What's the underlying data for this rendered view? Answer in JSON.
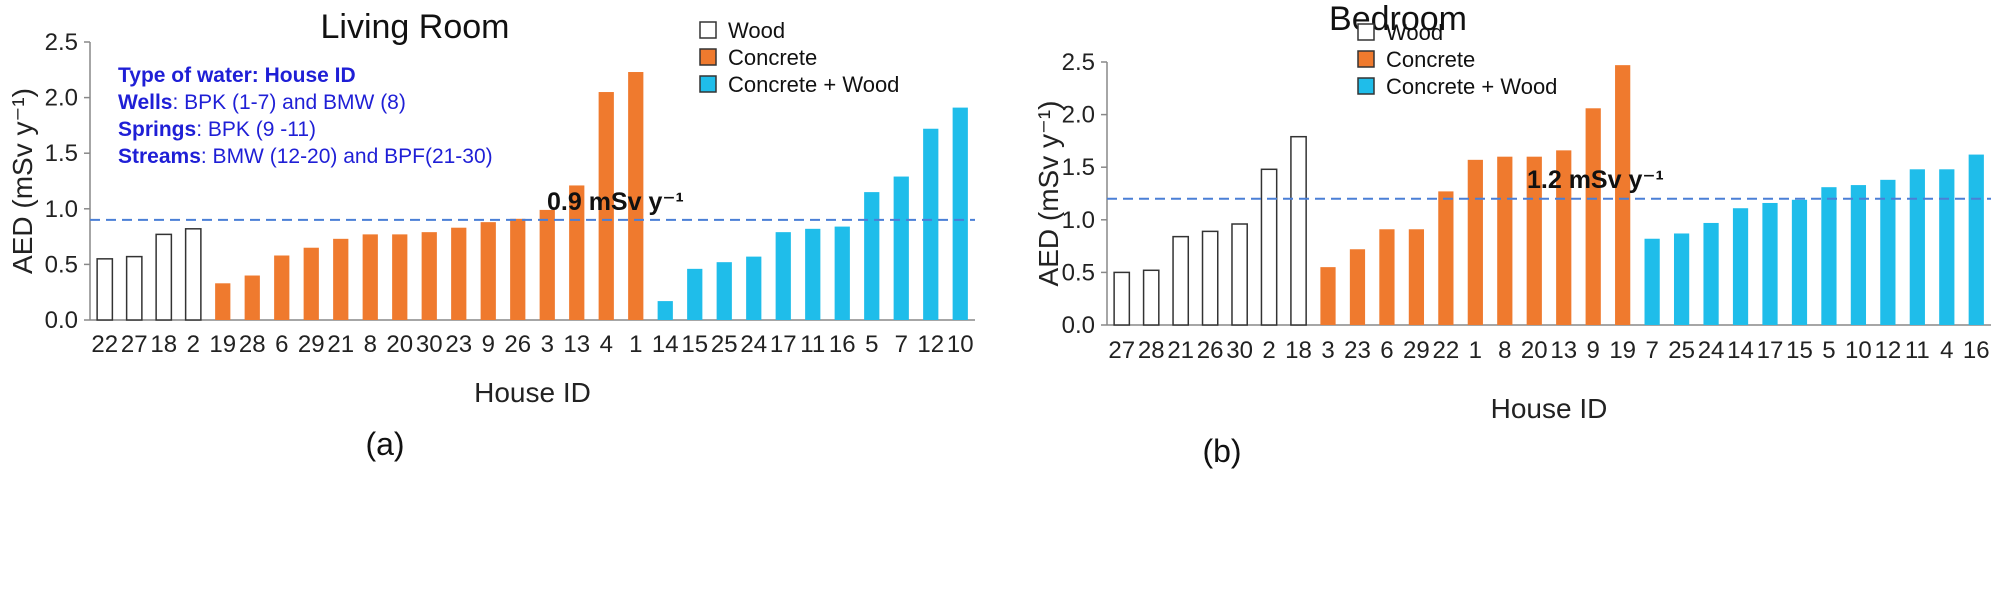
{
  "colors": {
    "wood": "#ffffff",
    "concrete": "#ef7a2e",
    "concrete_wood": "#1fbdea",
    "threshold": "#4a7fd6",
    "note": "#1f1fd6"
  },
  "chart_data": [
    {
      "type": "bar",
      "title": "Living Room",
      "xlabel": "House ID",
      "ylabel": "AED (mSv y⁻¹)",
      "ylim": [
        0,
        2.5
      ],
      "yticks": [
        "0.0",
        "0.5",
        "1.0",
        "1.5",
        "2.0",
        "2.5"
      ],
      "panel_label": "(a)",
      "threshold": {
        "value": 0.9,
        "label": "0.9 mSv y⁻¹"
      },
      "legend": [
        {
          "name": "Wood",
          "key": "wood"
        },
        {
          "name": "Concrete",
          "key": "concrete"
        },
        {
          "name": "Concrete + Wood",
          "key": "concrete_wood"
        }
      ],
      "notes": [
        {
          "bold": "Type of water: House ID",
          "rest": ""
        },
        {
          "bold": "Wells",
          "rest": ": BPK (1-7) and BMW (8)"
        },
        {
          "bold": "Springs",
          "rest": ": BPK (9 -11)"
        },
        {
          "bold": "Streams",
          "rest": ": BMW (12-20) and BPF(21-30)"
        }
      ],
      "categories": [
        "22",
        "27",
        "18",
        "2",
        "19",
        "28",
        "6",
        "29",
        "21",
        "8",
        "20",
        "30",
        "23",
        "9",
        "26",
        "3",
        "13",
        "4",
        "1",
        "14",
        "15",
        "25",
        "24",
        "17",
        "11",
        "16",
        "5",
        "7",
        "12",
        "10"
      ],
      "materials": [
        "wood",
        "wood",
        "wood",
        "wood",
        "concrete",
        "concrete",
        "concrete",
        "concrete",
        "concrete",
        "concrete",
        "concrete",
        "concrete",
        "concrete",
        "concrete",
        "concrete",
        "concrete",
        "concrete",
        "concrete",
        "concrete",
        "concrete_wood",
        "concrete_wood",
        "concrete_wood",
        "concrete_wood",
        "concrete_wood",
        "concrete_wood",
        "concrete_wood",
        "concrete_wood",
        "concrete_wood",
        "concrete_wood",
        "concrete_wood"
      ],
      "values": [
        0.55,
        0.57,
        0.77,
        0.82,
        0.33,
        0.4,
        0.58,
        0.65,
        0.73,
        0.77,
        0.77,
        0.79,
        0.83,
        0.88,
        0.91,
        0.99,
        1.21,
        2.05,
        2.23,
        0.17,
        0.46,
        0.52,
        0.57,
        0.79,
        0.82,
        0.84,
        1.15,
        1.29,
        1.72,
        1.91
      ]
    },
    {
      "type": "bar",
      "title": "Bedroom",
      "xlabel": "House ID",
      "ylabel": "AED (mSv y⁻¹)",
      "ylim": [
        0,
        2.5
      ],
      "yticks": [
        "0.0",
        "0.5",
        "1.0",
        "1.5",
        "2.0",
        "2.5"
      ],
      "panel_label": "(b)",
      "threshold": {
        "value": 1.2,
        "label": "1.2 mSv y⁻¹"
      },
      "legend": [
        {
          "name": "Wood",
          "key": "wood"
        },
        {
          "name": "Concrete",
          "key": "concrete"
        },
        {
          "name": "Concrete + Wood",
          "key": "concrete_wood"
        }
      ],
      "notes": [],
      "categories": [
        "27",
        "28",
        "21",
        "26",
        "30",
        "2",
        "18",
        "3",
        "23",
        "6",
        "29",
        "22",
        "1",
        "8",
        "20",
        "13",
        "9",
        "19",
        "7",
        "25",
        "24",
        "14",
        "17",
        "15",
        "5",
        "10",
        "12",
        "11",
        "4",
        "16"
      ],
      "materials": [
        "wood",
        "wood",
        "wood",
        "wood",
        "wood",
        "wood",
        "wood",
        "concrete",
        "concrete",
        "concrete",
        "concrete",
        "concrete",
        "concrete",
        "concrete",
        "concrete",
        "concrete",
        "concrete",
        "concrete",
        "concrete_wood",
        "concrete_wood",
        "concrete_wood",
        "concrete_wood",
        "concrete_wood",
        "concrete_wood",
        "concrete_wood",
        "concrete_wood",
        "concrete_wood",
        "concrete_wood",
        "concrete_wood",
        "concrete_wood"
      ],
      "values": [
        0.5,
        0.52,
        0.84,
        0.89,
        0.96,
        1.48,
        1.79,
        0.55,
        0.72,
        0.91,
        0.91,
        1.27,
        1.57,
        1.6,
        1.6,
        1.66,
        2.06,
        2.47,
        0.82,
        0.87,
        0.97,
        1.11,
        1.16,
        1.19,
        1.31,
        1.33,
        1.38,
        1.48,
        1.48,
        1.62
      ]
    }
  ]
}
